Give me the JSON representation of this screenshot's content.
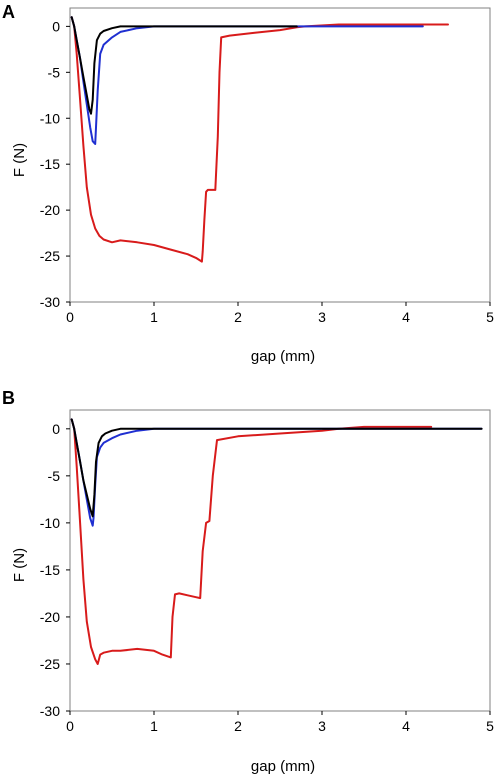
{
  "chart_data": [
    {
      "panel_label": "A",
      "type": "line",
      "xlabel": "gap (mm)",
      "ylabel": "F (N)",
      "xlim": [
        0,
        5
      ],
      "ylim": [
        -30,
        2
      ],
      "xticks": [
        "0",
        "1",
        "2",
        "3",
        "4",
        "5"
      ],
      "yticks": [
        "0",
        "-5",
        "-10",
        "-15",
        "-20",
        "-25",
        "-30"
      ],
      "grid": false,
      "series": [
        {
          "color": "#d81b1b",
          "x": [
            0.02,
            0.05,
            0.08,
            0.12,
            0.16,
            0.2,
            0.25,
            0.3,
            0.35,
            0.4,
            0.5,
            0.6,
            0.8,
            1.0,
            1.2,
            1.4,
            1.5,
            1.57,
            1.58,
            1.6,
            1.62,
            1.64,
            1.7,
            1.73,
            1.76,
            1.78,
            1.8,
            1.9,
            2.2,
            2.5,
            2.7,
            2.8,
            3.2,
            4.0,
            4.5
          ],
          "y": [
            1.0,
            0.0,
            -3.0,
            -8.0,
            -13.0,
            -17.5,
            -20.5,
            -22.0,
            -22.8,
            -23.2,
            -23.5,
            -23.3,
            -23.5,
            -23.8,
            -24.3,
            -24.8,
            -25.2,
            -25.6,
            -24.5,
            -21.0,
            -18.0,
            -17.8,
            -17.8,
            -17.8,
            -12.0,
            -5.0,
            -1.2,
            -1.0,
            -0.7,
            -0.4,
            -0.1,
            0.0,
            0.2,
            0.2,
            0.2
          ]
        },
        {
          "color": "#1f2fd1",
          "x": [
            0.02,
            0.05,
            0.08,
            0.12,
            0.16,
            0.2,
            0.24,
            0.27,
            0.3,
            0.31,
            0.33,
            0.36,
            0.4,
            0.5,
            0.6,
            0.8,
            1.0,
            1.5,
            2.0,
            3.0,
            4.2
          ],
          "y": [
            1.0,
            0.0,
            -1.5,
            -3.5,
            -6.0,
            -8.5,
            -11.0,
            -12.5,
            -12.8,
            -11.0,
            -7.0,
            -3.0,
            -2.0,
            -1.2,
            -0.6,
            -0.2,
            0.0,
            0.0,
            0.0,
            0.0,
            0.0
          ]
        },
        {
          "color": "#000000",
          "x": [
            0.02,
            0.05,
            0.08,
            0.12,
            0.16,
            0.2,
            0.23,
            0.25,
            0.27,
            0.29,
            0.32,
            0.36,
            0.4,
            0.5,
            0.6,
            0.8,
            1.0,
            1.5,
            2.0,
            2.7
          ],
          "y": [
            1.0,
            0.0,
            -1.5,
            -3.5,
            -5.5,
            -7.5,
            -9.0,
            -9.5,
            -8.0,
            -4.0,
            -1.5,
            -0.8,
            -0.5,
            -0.2,
            0.0,
            0.0,
            0.0,
            0.0,
            0.0,
            0.0
          ]
        }
      ]
    },
    {
      "panel_label": "B",
      "type": "line",
      "xlabel": "gap (mm)",
      "ylabel": "F (N)",
      "xlim": [
        0,
        5
      ],
      "ylim": [
        -30,
        2
      ],
      "xticks": [
        "0",
        "1",
        "2",
        "3",
        "4",
        "5"
      ],
      "yticks": [
        "0",
        "-5",
        "-10",
        "-15",
        "-20",
        "-25",
        "-30"
      ],
      "grid": false,
      "series": [
        {
          "color": "#d81b1b",
          "x": [
            0.02,
            0.05,
            0.08,
            0.12,
            0.16,
            0.2,
            0.25,
            0.3,
            0.33,
            0.36,
            0.4,
            0.5,
            0.6,
            0.8,
            1.0,
            1.1,
            1.2,
            1.22,
            1.25,
            1.3,
            1.4,
            1.5,
            1.55,
            1.58,
            1.62,
            1.66,
            1.7,
            1.75,
            2.0,
            2.5,
            3.0,
            3.2,
            3.5,
            4.0,
            4.3
          ],
          "y": [
            1.0,
            0.0,
            -4.0,
            -10.0,
            -16.0,
            -20.5,
            -23.2,
            -24.5,
            -25.0,
            -24.0,
            -23.8,
            -23.6,
            -23.6,
            -23.4,
            -23.6,
            -24.0,
            -24.3,
            -20.0,
            -17.6,
            -17.5,
            -17.7,
            -17.9,
            -18.0,
            -13.0,
            -10.0,
            -9.8,
            -5.0,
            -1.2,
            -0.8,
            -0.5,
            -0.2,
            0.0,
            0.2,
            0.2,
            0.2
          ]
        },
        {
          "color": "#1f2fd1",
          "x": [
            0.02,
            0.05,
            0.08,
            0.12,
            0.16,
            0.2,
            0.24,
            0.27,
            0.28,
            0.3,
            0.32,
            0.36,
            0.4,
            0.5,
            0.6,
            0.8,
            1.0,
            1.5,
            2.0,
            3.0,
            4.9
          ],
          "y": [
            1.0,
            0.0,
            -1.5,
            -3.5,
            -5.5,
            -7.5,
            -9.5,
            -10.3,
            -9.5,
            -6.0,
            -3.0,
            -2.0,
            -1.5,
            -1.0,
            -0.6,
            -0.2,
            0.0,
            0.0,
            0.0,
            0.0,
            0.0
          ]
        },
        {
          "color": "#000000",
          "x": [
            0.02,
            0.05,
            0.08,
            0.12,
            0.16,
            0.2,
            0.24,
            0.27,
            0.29,
            0.31,
            0.34,
            0.38,
            0.42,
            0.5,
            0.6,
            0.8,
            1.0,
            1.5,
            2.0,
            3.0,
            4.9
          ],
          "y": [
            1.0,
            0.0,
            -1.5,
            -3.5,
            -5.5,
            -7.0,
            -8.5,
            -9.3,
            -7.0,
            -3.5,
            -1.5,
            -0.8,
            -0.5,
            -0.2,
            0.0,
            0.0,
            0.0,
            0.0,
            0.0,
            0.0,
            0.0
          ]
        }
      ]
    }
  ]
}
